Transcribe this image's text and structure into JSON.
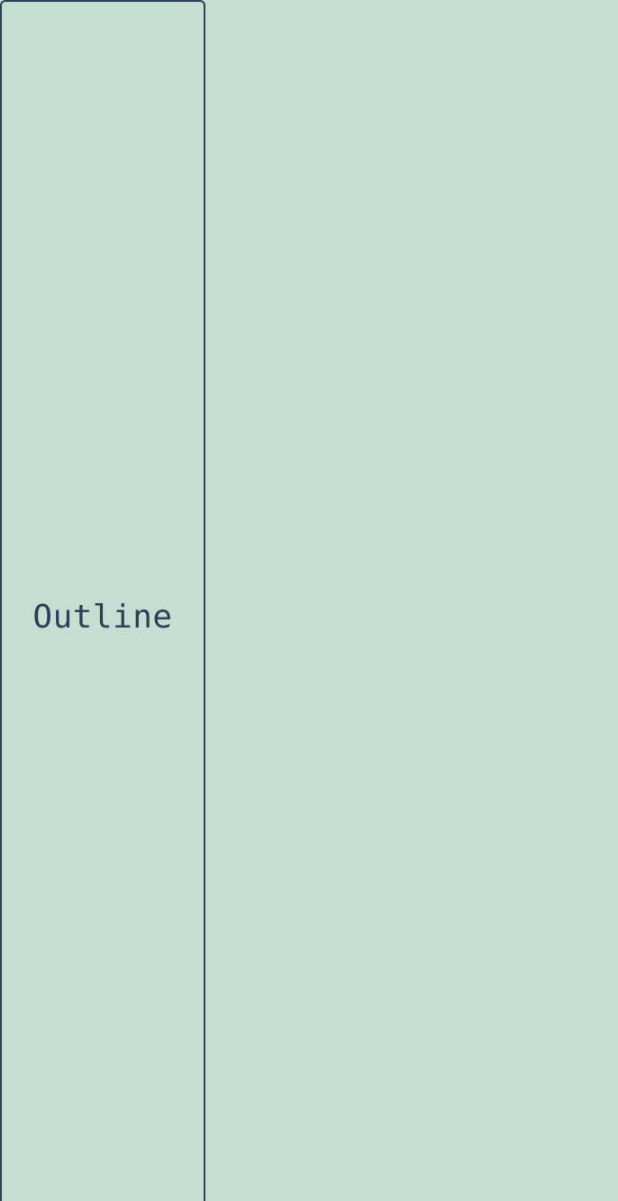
{
  "colors": {
    "background": "#c3dfd2",
    "outline": "#2e3f57",
    "text": "#2e3f57"
  },
  "button": {
    "label": "Outline"
  }
}
